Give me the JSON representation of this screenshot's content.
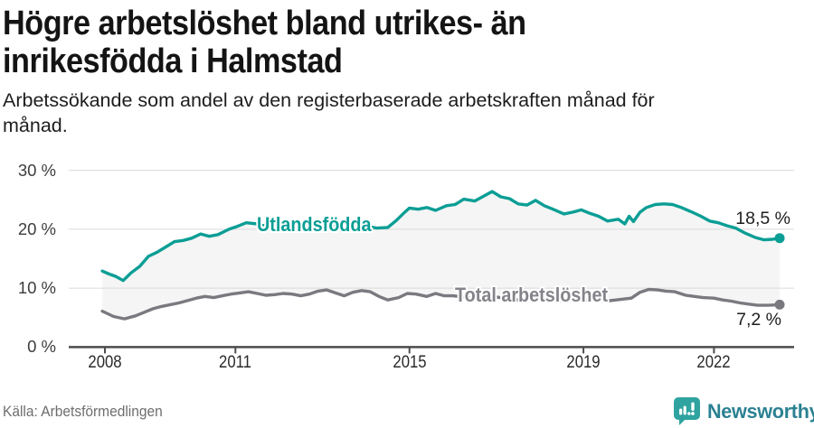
{
  "header": {
    "title": "Högre arbetslöshet bland utrikes- än inrikesfödda i Halmstad",
    "title_lines": [
      "Högre arbetslöshet bland utrikes- än",
      "inrikesfödda i Halmstad"
    ],
    "subtitle_lines": [
      "Arbetssökande som andel av den registerbaserade arbetskraften månad för",
      "månad."
    ]
  },
  "chart_data": {
    "type": "line",
    "title": "Högre arbetslöshet bland utrikes- än inrikesfödda i Halmstad",
    "xlabel": "",
    "ylabel": "%",
    "ylim": [
      0,
      30
    ],
    "xlim": [
      2007.8,
      2023.9
    ],
    "grid": "horizontal",
    "legend_position": "inline-on-line",
    "area_between_series": true,
    "area_color": "#f5f5f5",
    "grid_color": "#dadada",
    "axis_color": "#4c4c4c",
    "x_axis": {
      "ticks": [
        {
          "value": 2008,
          "label": "2008"
        },
        {
          "value": 2011,
          "label": "2011"
        },
        {
          "value": 2015,
          "label": "2015"
        },
        {
          "value": 2019,
          "label": "2019"
        },
        {
          "value": 2022,
          "label": "2022"
        }
      ]
    },
    "y_axis": {
      "ticks": [
        {
          "value": 0,
          "label": "0 %"
        },
        {
          "value": 10,
          "label": "10 %"
        },
        {
          "value": 20,
          "label": "20 %"
        },
        {
          "value": 30,
          "label": "30 %"
        }
      ]
    },
    "series": [
      {
        "name": "Utlandsfödda",
        "color": "#0b9e95",
        "label_color": "#0b9e95",
        "end_label": "18,5 %",
        "end_value": 18.5,
        "points": [
          [
            2007.94,
            12.9
          ],
          [
            2008.1,
            12.4
          ],
          [
            2008.25,
            12.0
          ],
          [
            2008.42,
            11.3
          ],
          [
            2008.6,
            12.6
          ],
          [
            2008.8,
            13.7
          ],
          [
            2009.0,
            15.4
          ],
          [
            2009.2,
            16.1
          ],
          [
            2009.4,
            17.0
          ],
          [
            2009.6,
            17.9
          ],
          [
            2009.8,
            18.1
          ],
          [
            2010.0,
            18.5
          ],
          [
            2010.2,
            19.2
          ],
          [
            2010.4,
            18.8
          ],
          [
            2010.6,
            19.1
          ],
          [
            2010.85,
            20.0
          ],
          [
            2011.05,
            20.5
          ],
          [
            2011.25,
            21.1
          ],
          [
            2011.5,
            20.9
          ],
          [
            2011.75,
            20.4
          ],
          [
            2012.0,
            20.2
          ],
          [
            2012.25,
            20.6
          ],
          [
            2012.5,
            20.3
          ],
          [
            2012.75,
            20.7
          ],
          [
            2013.0,
            20.9
          ],
          [
            2013.25,
            20.5
          ],
          [
            2013.5,
            20.7
          ],
          [
            2013.75,
            20.4
          ],
          [
            2014.0,
            20.5
          ],
          [
            2014.25,
            20.2
          ],
          [
            2014.5,
            20.3
          ],
          [
            2014.7,
            21.5
          ],
          [
            2014.85,
            22.6
          ],
          [
            2015.0,
            23.6
          ],
          [
            2015.2,
            23.4
          ],
          [
            2015.4,
            23.7
          ],
          [
            2015.6,
            23.2
          ],
          [
            2015.85,
            24.0
          ],
          [
            2016.05,
            24.2
          ],
          [
            2016.25,
            25.1
          ],
          [
            2016.5,
            24.8
          ],
          [
            2016.7,
            25.6
          ],
          [
            2016.9,
            26.4
          ],
          [
            2017.1,
            25.5
          ],
          [
            2017.3,
            25.2
          ],
          [
            2017.5,
            24.3
          ],
          [
            2017.7,
            24.1
          ],
          [
            2017.9,
            24.9
          ],
          [
            2018.1,
            24.0
          ],
          [
            2018.3,
            23.4
          ],
          [
            2018.55,
            22.6
          ],
          [
            2018.75,
            22.9
          ],
          [
            2018.95,
            23.3
          ],
          [
            2019.15,
            22.7
          ],
          [
            2019.35,
            22.2
          ],
          [
            2019.55,
            21.4
          ],
          [
            2019.8,
            21.7
          ],
          [
            2019.95,
            20.9
          ],
          [
            2020.05,
            22.2
          ],
          [
            2020.15,
            21.3
          ],
          [
            2020.3,
            22.9
          ],
          [
            2020.45,
            23.7
          ],
          [
            2020.65,
            24.2
          ],
          [
            2020.85,
            24.3
          ],
          [
            2021.05,
            24.2
          ],
          [
            2021.25,
            23.7
          ],
          [
            2021.5,
            22.9
          ],
          [
            2021.7,
            22.2
          ],
          [
            2021.9,
            21.4
          ],
          [
            2022.1,
            21.1
          ],
          [
            2022.3,
            20.6
          ],
          [
            2022.5,
            20.2
          ],
          [
            2022.7,
            19.4
          ],
          [
            2022.95,
            18.6
          ],
          [
            2023.15,
            18.2
          ],
          [
            2023.35,
            18.3
          ],
          [
            2023.51,
            18.5
          ]
        ]
      },
      {
        "name": "Total arbetslöshet",
        "color": "#7b7980",
        "label_color": "#85838a",
        "end_label": "7,2 %",
        "end_value": 7.2,
        "points": [
          [
            2007.94,
            6.1
          ],
          [
            2008.2,
            5.2
          ],
          [
            2008.45,
            4.8
          ],
          [
            2008.7,
            5.3
          ],
          [
            2008.9,
            5.9
          ],
          [
            2009.1,
            6.5
          ],
          [
            2009.3,
            6.9
          ],
          [
            2009.5,
            7.2
          ],
          [
            2009.7,
            7.5
          ],
          [
            2009.9,
            7.9
          ],
          [
            2010.1,
            8.3
          ],
          [
            2010.3,
            8.6
          ],
          [
            2010.5,
            8.4
          ],
          [
            2010.7,
            8.7
          ],
          [
            2010.9,
            9.0
          ],
          [
            2011.1,
            9.2
          ],
          [
            2011.3,
            9.4
          ],
          [
            2011.5,
            9.1
          ],
          [
            2011.7,
            8.8
          ],
          [
            2011.9,
            8.9
          ],
          [
            2012.1,
            9.1
          ],
          [
            2012.3,
            9.0
          ],
          [
            2012.5,
            8.7
          ],
          [
            2012.7,
            9.0
          ],
          [
            2012.9,
            9.5
          ],
          [
            2013.1,
            9.7
          ],
          [
            2013.3,
            9.2
          ],
          [
            2013.5,
            8.7
          ],
          [
            2013.7,
            9.3
          ],
          [
            2013.9,
            9.6
          ],
          [
            2014.1,
            9.4
          ],
          [
            2014.3,
            8.6
          ],
          [
            2014.5,
            8.0
          ],
          [
            2014.75,
            8.4
          ],
          [
            2014.95,
            9.1
          ],
          [
            2015.15,
            9.0
          ],
          [
            2015.4,
            8.6
          ],
          [
            2015.6,
            9.1
          ],
          [
            2015.8,
            8.7
          ],
          [
            2016.0,
            8.7
          ],
          [
            2016.25,
            8.5
          ],
          [
            2016.5,
            8.3
          ],
          [
            2016.75,
            8.4
          ],
          [
            2017.0,
            8.5
          ],
          [
            2017.25,
            8.2
          ],
          [
            2017.5,
            8.0
          ],
          [
            2017.75,
            8.1
          ],
          [
            2018.0,
            8.2
          ],
          [
            2018.25,
            8.0
          ],
          [
            2018.5,
            7.8
          ],
          [
            2018.75,
            7.9
          ],
          [
            2019.0,
            8.0
          ],
          [
            2019.25,
            7.9
          ],
          [
            2019.5,
            7.8
          ],
          [
            2019.75,
            8.0
          ],
          [
            2020.1,
            8.3
          ],
          [
            2020.3,
            9.3
          ],
          [
            2020.5,
            9.8
          ],
          [
            2020.7,
            9.7
          ],
          [
            2020.9,
            9.5
          ],
          [
            2021.1,
            9.4
          ],
          [
            2021.35,
            8.8
          ],
          [
            2021.55,
            8.6
          ],
          [
            2021.75,
            8.4
          ],
          [
            2022.0,
            8.3
          ],
          [
            2022.2,
            8.0
          ],
          [
            2022.4,
            7.8
          ],
          [
            2022.6,
            7.5
          ],
          [
            2022.8,
            7.3
          ],
          [
            2023.0,
            7.1
          ],
          [
            2023.25,
            7.1
          ],
          [
            2023.51,
            7.2
          ]
        ]
      }
    ]
  },
  "footer": {
    "source": "Källa: Arbetsförmedlingen",
    "brand": "Newsworthy",
    "brand_color": "#2a8191",
    "brand_icon_color": "#2ea3a0"
  }
}
